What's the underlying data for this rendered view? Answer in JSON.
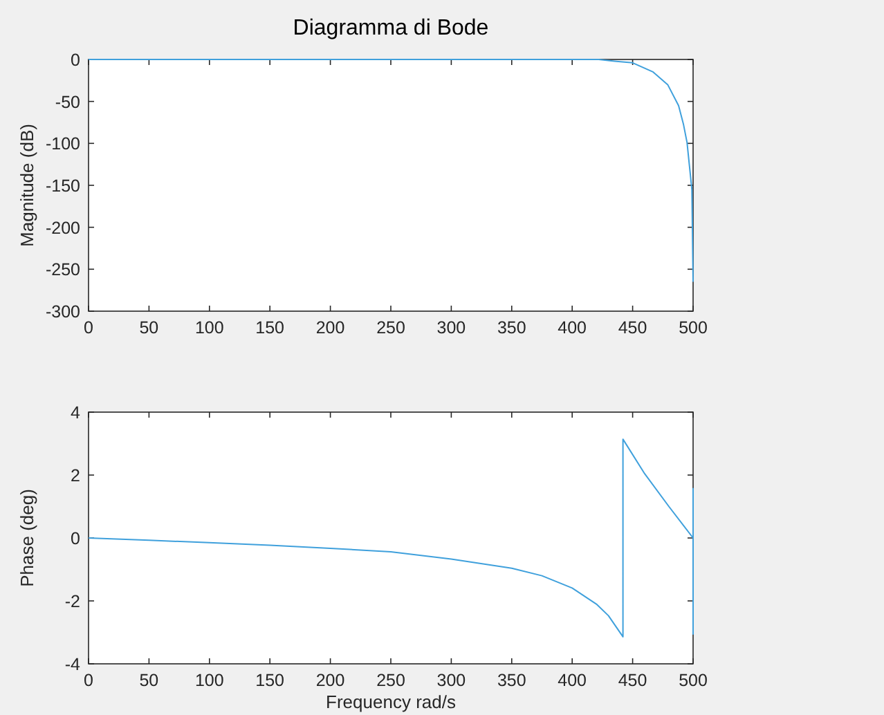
{
  "chart_data": [
    {
      "type": "line",
      "title": "Diagramma di Bode",
      "ylabel": "Magnitude (dB)",
      "xlim": [
        0,
        500
      ],
      "xticks": [
        0,
        50,
        100,
        150,
        200,
        250,
        300,
        350,
        400,
        450,
        500
      ],
      "ylim": [
        -300,
        0
      ],
      "yticks": [
        -300,
        -250,
        -200,
        -150,
        -100,
        -50,
        0
      ],
      "grid": false,
      "line_style": "solid",
      "series": [
        {
          "color": "#3fa0dc",
          "x": [
            0,
            100,
            200,
            300,
            400,
            422,
            435,
            450,
            467,
            479,
            488,
            492,
            495,
            497,
            499,
            500
          ],
          "values": [
            0,
            0,
            0,
            0,
            0,
            0,
            -2,
            -4,
            -15,
            -30,
            -55,
            -77,
            -99,
            -127,
            -155,
            -265
          ]
        }
      ]
    },
    {
      "type": "line",
      "xlabel": "Frequency rad/s",
      "ylabel": "Phase (deg)",
      "xlim": [
        0,
        500
      ],
      "xticks": [
        0,
        50,
        100,
        150,
        200,
        250,
        300,
        350,
        400,
        450,
        500
      ],
      "ylim": [
        -4,
        4
      ],
      "yticks": [
        -4,
        -2,
        0,
        2,
        4
      ],
      "grid": false,
      "line_style": "solid",
      "series": [
        {
          "color": "#3fa0dc",
          "x": [
            0,
            50,
            100,
            150,
            200,
            250,
            300,
            350,
            375,
            400,
            420,
            430,
            442,
            442,
            460,
            480,
            500,
            500,
            500
          ],
          "values": [
            0,
            -0.07,
            -0.15,
            -0.23,
            -0.33,
            -0.44,
            -0.67,
            -0.96,
            -1.2,
            -1.59,
            -2.1,
            -2.47,
            -3.14,
            3.14,
            2.04,
            1.0,
            0,
            1.57,
            -3.07
          ]
        }
      ]
    }
  ]
}
